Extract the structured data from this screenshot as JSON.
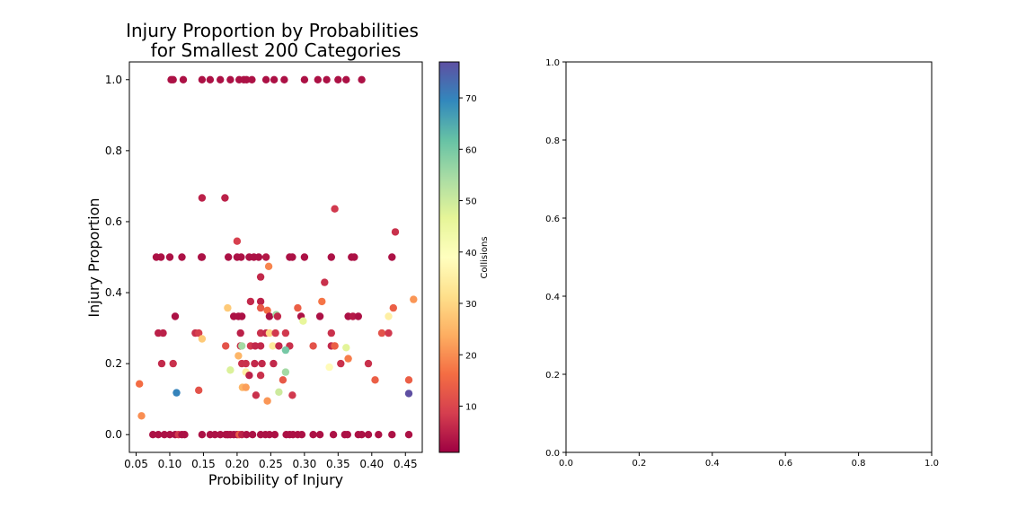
{
  "chart_data": [
    {
      "type": "scatter",
      "title": "Injury Proportion by Probabilities\nfor Smallest 200 Categories",
      "xlabel": "Probibility of Injury",
      "ylabel": "Injury Proportion",
      "xlim": [
        0.04,
        0.475
      ],
      "ylim": [
        -0.05,
        1.05
      ],
      "xticks": [
        "0.05",
        "0.10",
        "0.15",
        "0.20",
        "0.25",
        "0.30",
        "0.35",
        "0.40",
        "0.45"
      ],
      "yticks": [
        "0.0",
        "0.2",
        "0.4",
        "0.6",
        "0.8",
        "1.0"
      ],
      "grid": false,
      "colormap": "Spectral",
      "colorbar": {
        "label": "Collisions",
        "range": [
          1,
          77
        ],
        "ticks": [
          "10",
          "20",
          "30",
          "40",
          "50",
          "60",
          "70"
        ],
        "stops": [
          "#9e0142",
          "#d53e4f",
          "#f46d43",
          "#fdae61",
          "#fee08b",
          "#ffffbf",
          "#e6f598",
          "#abdda4",
          "#66c2a5",
          "#3288bd",
          "#5e4fa2"
        ]
      },
      "points": [
        [
          0.102,
          1.0,
          3
        ],
        [
          0.105,
          1.0,
          3
        ],
        [
          0.12,
          1.0,
          3
        ],
        [
          0.148,
          1.0,
          3
        ],
        [
          0.16,
          1.0,
          3
        ],
        [
          0.175,
          1.0,
          3
        ],
        [
          0.19,
          1.0,
          3
        ],
        [
          0.203,
          1.0,
          3
        ],
        [
          0.21,
          1.0,
          3
        ],
        [
          0.214,
          1.0,
          3
        ],
        [
          0.222,
          1.0,
          3
        ],
        [
          0.243,
          1.0,
          3
        ],
        [
          0.255,
          1.0,
          3
        ],
        [
          0.27,
          1.0,
          3
        ],
        [
          0.3,
          1.0,
          3
        ],
        [
          0.32,
          1.0,
          3
        ],
        [
          0.333,
          1.0,
          3
        ],
        [
          0.35,
          1.0,
          3
        ],
        [
          0.362,
          1.0,
          3
        ],
        [
          0.385,
          1.0,
          3
        ],
        [
          0.148,
          0.667,
          5
        ],
        [
          0.182,
          0.667,
          5
        ],
        [
          0.345,
          0.636,
          8
        ],
        [
          0.435,
          0.571,
          7
        ],
        [
          0.2,
          0.545,
          9
        ],
        [
          0.08,
          0.5,
          3
        ],
        [
          0.087,
          0.5,
          3
        ],
        [
          0.1,
          0.5,
          3
        ],
        [
          0.118,
          0.5,
          3
        ],
        [
          0.147,
          0.5,
          3
        ],
        [
          0.148,
          0.5,
          3
        ],
        [
          0.187,
          0.5,
          3
        ],
        [
          0.2,
          0.5,
          3
        ],
        [
          0.206,
          0.5,
          3
        ],
        [
          0.218,
          0.5,
          3
        ],
        [
          0.225,
          0.5,
          3
        ],
        [
          0.232,
          0.5,
          3
        ],
        [
          0.243,
          0.5,
          4
        ],
        [
          0.278,
          0.5,
          3
        ],
        [
          0.282,
          0.5,
          3
        ],
        [
          0.3,
          0.5,
          3
        ],
        [
          0.34,
          0.5,
          3
        ],
        [
          0.37,
          0.5,
          3
        ],
        [
          0.374,
          0.5,
          3
        ],
        [
          0.43,
          0.5,
          3
        ],
        [
          0.247,
          0.474,
          19
        ],
        [
          0.235,
          0.444,
          6
        ],
        [
          0.33,
          0.429,
          7
        ],
        [
          0.462,
          0.381,
          21
        ],
        [
          0.326,
          0.375,
          17
        ],
        [
          0.22,
          0.375,
          6
        ],
        [
          0.235,
          0.375,
          5
        ],
        [
          0.186,
          0.357,
          28
        ],
        [
          0.235,
          0.357,
          13
        ],
        [
          0.245,
          0.35,
          16
        ],
        [
          0.29,
          0.357,
          14
        ],
        [
          0.432,
          0.357,
          14
        ],
        [
          0.108,
          0.333,
          3
        ],
        [
          0.195,
          0.333,
          3
        ],
        [
          0.202,
          0.333,
          3
        ],
        [
          0.207,
          0.333,
          3
        ],
        [
          0.248,
          0.333,
          3
        ],
        [
          0.258,
          0.338,
          55
        ],
        [
          0.26,
          0.333,
          6
        ],
        [
          0.295,
          0.333,
          3
        ],
        [
          0.323,
          0.333,
          3
        ],
        [
          0.365,
          0.333,
          3
        ],
        [
          0.372,
          0.333,
          4
        ],
        [
          0.38,
          0.333,
          3
        ],
        [
          0.425,
          0.333,
          35
        ],
        [
          0.298,
          0.32,
          46
        ],
        [
          0.083,
          0.286,
          5
        ],
        [
          0.09,
          0.286,
          5
        ],
        [
          0.138,
          0.286,
          7
        ],
        [
          0.143,
          0.286,
          9
        ],
        [
          0.205,
          0.286,
          5
        ],
        [
          0.235,
          0.286,
          7
        ],
        [
          0.243,
          0.286,
          6
        ],
        [
          0.248,
          0.286,
          30
        ],
        [
          0.257,
          0.286,
          8
        ],
        [
          0.272,
          0.286,
          8
        ],
        [
          0.34,
          0.286,
          7
        ],
        [
          0.415,
          0.286,
          12
        ],
        [
          0.425,
          0.286,
          8
        ],
        [
          0.148,
          0.27,
          28
        ],
        [
          0.183,
          0.25,
          12
        ],
        [
          0.205,
          0.25,
          7
        ],
        [
          0.207,
          0.25,
          55
        ],
        [
          0.22,
          0.25,
          8
        ],
        [
          0.227,
          0.25,
          6
        ],
        [
          0.235,
          0.25,
          6
        ],
        [
          0.253,
          0.25,
          34
        ],
        [
          0.262,
          0.25,
          6
        ],
        [
          0.278,
          0.25,
          7
        ],
        [
          0.313,
          0.25,
          12
        ],
        [
          0.34,
          0.25,
          6
        ],
        [
          0.345,
          0.25,
          22
        ],
        [
          0.345,
          0.25,
          14
        ],
        [
          0.362,
          0.245,
          47
        ],
        [
          0.272,
          0.238,
          60
        ],
        [
          0.202,
          0.222,
          25
        ],
        [
          0.365,
          0.214,
          18
        ],
        [
          0.088,
          0.2,
          6
        ],
        [
          0.105,
          0.2,
          7
        ],
        [
          0.207,
          0.2,
          7
        ],
        [
          0.213,
          0.2,
          7
        ],
        [
          0.226,
          0.2,
          6
        ],
        [
          0.237,
          0.2,
          6
        ],
        [
          0.254,
          0.2,
          6
        ],
        [
          0.354,
          0.2,
          7
        ],
        [
          0.395,
          0.2,
          7
        ],
        [
          0.337,
          0.19,
          38
        ],
        [
          0.19,
          0.182,
          48
        ],
        [
          0.213,
          0.176,
          35
        ],
        [
          0.218,
          0.167,
          5
        ],
        [
          0.235,
          0.167,
          7
        ],
        [
          0.272,
          0.176,
          55
        ],
        [
          0.405,
          0.154,
          14
        ],
        [
          0.455,
          0.154,
          14
        ],
        [
          0.268,
          0.154,
          13
        ],
        [
          0.055,
          0.143,
          16
        ],
        [
          0.208,
          0.133,
          25
        ],
        [
          0.213,
          0.133,
          22
        ],
        [
          0.143,
          0.125,
          12
        ],
        [
          0.11,
          0.118,
          70
        ],
        [
          0.262,
          0.12,
          50
        ],
        [
          0.282,
          0.111,
          8
        ],
        [
          0.228,
          0.111,
          7
        ],
        [
          0.455,
          0.116,
          77
        ],
        [
          0.245,
          0.095,
          21
        ],
        [
          0.058,
          0.053,
          20
        ],
        [
          0.075,
          0.0,
          3
        ],
        [
          0.083,
          0.0,
          3
        ],
        [
          0.092,
          0.0,
          3
        ],
        [
          0.1,
          0.0,
          3
        ],
        [
          0.108,
          0.0,
          3
        ],
        [
          0.113,
          0.0,
          8
        ],
        [
          0.118,
          0.0,
          3
        ],
        [
          0.122,
          0.0,
          3
        ],
        [
          0.148,
          0.0,
          3
        ],
        [
          0.16,
          0.0,
          3
        ],
        [
          0.167,
          0.0,
          3
        ],
        [
          0.175,
          0.0,
          3
        ],
        [
          0.183,
          0.0,
          3
        ],
        [
          0.186,
          0.0,
          3
        ],
        [
          0.19,
          0.0,
          3
        ],
        [
          0.195,
          0.0,
          3
        ],
        [
          0.2,
          0.0,
          3
        ],
        [
          0.203,
          0.0,
          13
        ],
        [
          0.207,
          0.0,
          5
        ],
        [
          0.214,
          0.0,
          3
        ],
        [
          0.223,
          0.0,
          3
        ],
        [
          0.235,
          0.0,
          3
        ],
        [
          0.242,
          0.0,
          3
        ],
        [
          0.248,
          0.0,
          3
        ],
        [
          0.256,
          0.0,
          3
        ],
        [
          0.273,
          0.0,
          3
        ],
        [
          0.278,
          0.0,
          3
        ],
        [
          0.283,
          0.0,
          3
        ],
        [
          0.29,
          0.0,
          3
        ],
        [
          0.296,
          0.0,
          3
        ],
        [
          0.313,
          0.0,
          3
        ],
        [
          0.323,
          0.0,
          3
        ],
        [
          0.343,
          0.0,
          3
        ],
        [
          0.36,
          0.0,
          3
        ],
        [
          0.364,
          0.0,
          3
        ],
        [
          0.38,
          0.0,
          3
        ],
        [
          0.385,
          0.0,
          3
        ],
        [
          0.395,
          0.0,
          3
        ],
        [
          0.41,
          0.0,
          3
        ],
        [
          0.43,
          0.0,
          3
        ],
        [
          0.455,
          0.0,
          3
        ]
      ]
    },
    {
      "type": "scatter",
      "title": "",
      "xlabel": "",
      "ylabel": "",
      "xlim": [
        0.0,
        1.0
      ],
      "ylim": [
        0.0,
        1.0
      ],
      "xticks": [
        "0.0",
        "0.2",
        "0.4",
        "0.6",
        "0.8",
        "1.0"
      ],
      "yticks": [
        "0.0",
        "0.2",
        "0.4",
        "0.6",
        "0.8",
        "1.0"
      ],
      "grid": false,
      "points": []
    }
  ]
}
